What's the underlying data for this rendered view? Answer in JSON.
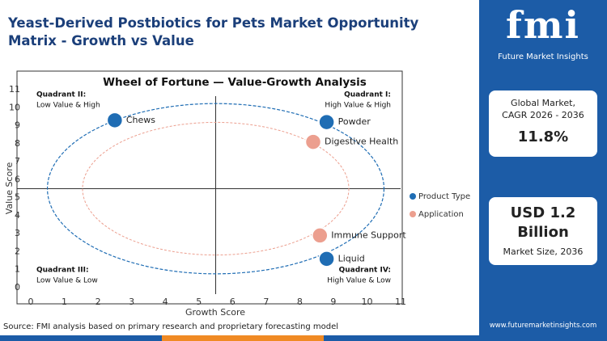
{
  "header": {
    "title": "Yeast-Derived Postbiotics for Pets Market Opportunity Matrix - Growth vs Value"
  },
  "chart_data": {
    "type": "scatter",
    "title": "Wheel of Fortune — Value-Growth Analysis",
    "x_label": "Growth Score",
    "y_label": "Value Score",
    "xlim": [
      0,
      11
    ],
    "ylim": [
      0,
      11
    ],
    "xticks": [
      0,
      1,
      2,
      3,
      4,
      5,
      6,
      7,
      8,
      9,
      10,
      11
    ],
    "yticks": [
      0,
      1,
      2,
      3,
      4,
      5,
      6,
      7,
      8,
      9,
      10,
      11
    ],
    "series": [
      {
        "name": "Product Type",
        "color": "#1f6db4",
        "x": [
          2.5,
          8.8,
          8.8
        ],
        "values": [
          9.3,
          9.2,
          1.6
        ],
        "labels": [
          "Chews",
          "Powder",
          "Liquid"
        ]
      },
      {
        "name": "Application",
        "color": "#ec9f8f",
        "x": [
          8.4,
          8.6
        ],
        "values": [
          8.1,
          2.9
        ],
        "labels": [
          "Digestive Health",
          "Immune Support"
        ]
      }
    ],
    "quadrants": [
      {
        "title": "Quadrant II:",
        "text": "Low Value & High",
        "corner": "top-left"
      },
      {
        "title": "Quadrant I:",
        "text": "High Value & High",
        "corner": "top-right"
      },
      {
        "title": "Quadrant III:",
        "text": "Low Value & Low",
        "corner": "bottom-left"
      },
      {
        "title": "Quadrant IV:",
        "text": "High Value & Low",
        "corner": "bottom-right"
      }
    ]
  },
  "sidebar": {
    "logo": "fmi",
    "logo_subtitle": "Future Market Insights",
    "cards": [
      {
        "label": "Global Market, CAGR 2026 - 2036",
        "value": "11.8%"
      },
      {
        "value": "USD 1.2 Billion",
        "label": "Market Size, 2036"
      }
    ],
    "website": "www.futuremarketinsights.com"
  },
  "footer": {
    "source": "Source: FMI analysis based on primary research and proprietary forecasting model"
  }
}
